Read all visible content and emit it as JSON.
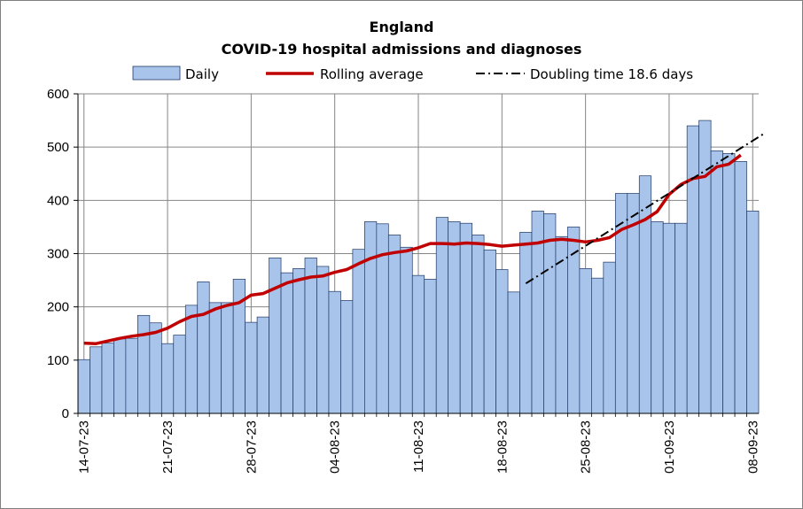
{
  "chart_data": {
    "type": "bar",
    "title": "England",
    "subtitle": "COVID-19 hospital admissions and diagnoses",
    "xlabel": "",
    "ylabel": "",
    "ylim": [
      0,
      600
    ],
    "yticks": [
      "0",
      "100",
      "200",
      "300",
      "400",
      "500",
      "600"
    ],
    "grid": true,
    "legend_position": "top",
    "xtick_labels": [
      "14-07-23",
      "21-07-23",
      "28-07-23",
      "04-08-23",
      "11-08-23",
      "18-08-23",
      "25-08-23",
      "01-09-23",
      "08-09-23"
    ],
    "x": [
      "14-07-23",
      "15-07-23",
      "16-07-23",
      "17-07-23",
      "18-07-23",
      "19-07-23",
      "20-07-23",
      "21-07-23",
      "22-07-23",
      "23-07-23",
      "24-07-23",
      "25-07-23",
      "26-07-23",
      "27-07-23",
      "28-07-23",
      "29-07-23",
      "30-07-23",
      "31-07-23",
      "01-08-23",
      "02-08-23",
      "03-08-23",
      "04-08-23",
      "05-08-23",
      "06-08-23",
      "07-08-23",
      "08-08-23",
      "09-08-23",
      "10-08-23",
      "11-08-23",
      "12-08-23",
      "13-08-23",
      "14-08-23",
      "15-08-23",
      "16-08-23",
      "17-08-23",
      "18-08-23",
      "19-08-23",
      "20-08-23",
      "21-08-23",
      "22-08-23",
      "23-08-23",
      "24-08-23",
      "25-08-23",
      "26-08-23",
      "27-08-23",
      "28-08-23",
      "29-08-23",
      "30-08-23",
      "31-08-23",
      "01-09-23",
      "02-09-23",
      "03-09-23",
      "04-09-23",
      "05-09-23",
      "06-09-23",
      "07-09-23",
      "08-09-23"
    ],
    "series": [
      {
        "name": "Daily",
        "type": "bar",
        "color": "#a9c4eb",
        "values": [
          101,
          125,
          132,
          140,
          141,
          184,
          170,
          131,
          147,
          203,
          247,
          208,
          208,
          252,
          171,
          181,
          292,
          264,
          272,
          292,
          276,
          229,
          212,
          308,
          360,
          356,
          335,
          312,
          259,
          252,
          368,
          360,
          357,
          335,
          307,
          270,
          228,
          340,
          380,
          375,
          332,
          350,
          272,
          254,
          284,
          413,
          413,
          446,
          360,
          357,
          357,
          540,
          550,
          493,
          488,
          473,
          380
        ]
      },
      {
        "name": "Rolling average",
        "type": "line",
        "color": "#c00000",
        "values": [
          132,
          131,
          136,
          141,
          145,
          148,
          152,
          160,
          172,
          182,
          186,
          196,
          203,
          208,
          222,
          225,
          235,
          245,
          251,
          256,
          258,
          265,
          270,
          281,
          291,
          298,
          302,
          305,
          311,
          319,
          319,
          318,
          320,
          319,
          317,
          314,
          316,
          318,
          320,
          325,
          327,
          325,
          322,
          325,
          330,
          345,
          354,
          364,
          379,
          411,
          430,
          441,
          445,
          463,
          468,
          485,
          null
        ]
      },
      {
        "name": "Doubling time 18.6 days",
        "type": "line",
        "style": "dash-dot",
        "color": "#000000",
        "x": [
          "20-08-23",
          "09-09-23"
        ],
        "values": [
          244,
          526
        ]
      }
    ]
  }
}
